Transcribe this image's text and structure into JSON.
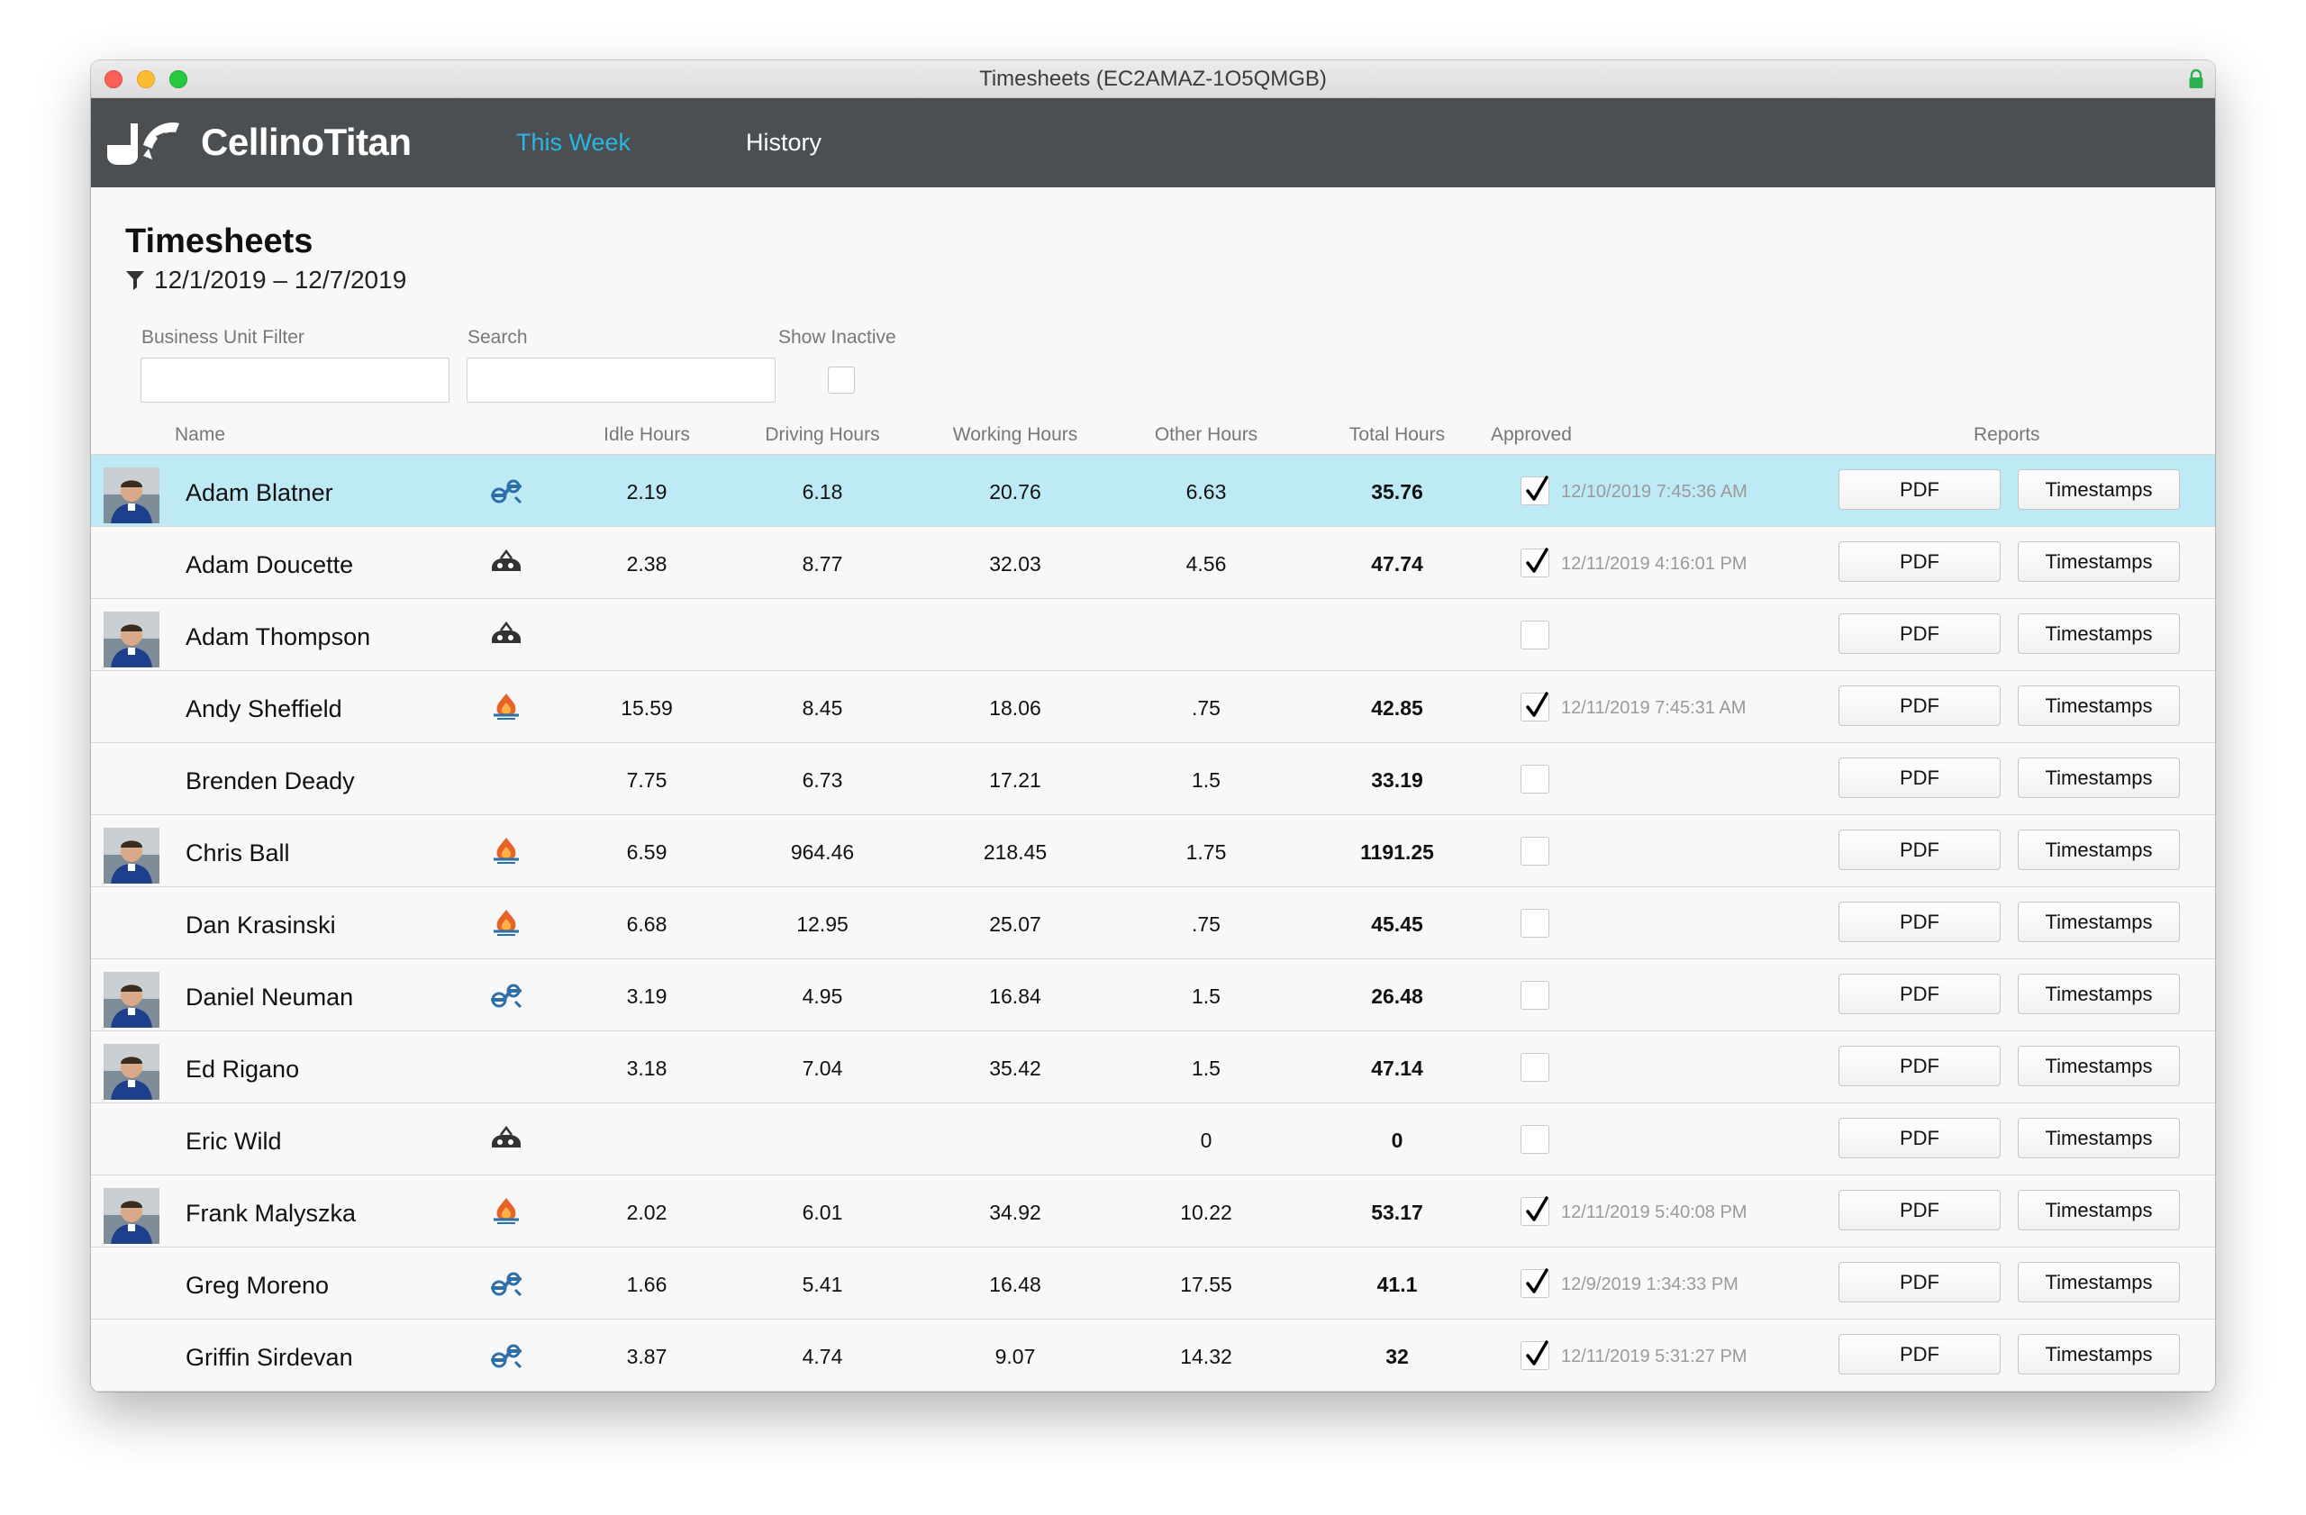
{
  "window": {
    "title": "Timesheets (EC2AMAZ-1O5QMGB)"
  },
  "nav": {
    "brand": "CellinoTitan",
    "tabs": [
      {
        "label": "This Week",
        "active": true
      },
      {
        "label": "History",
        "active": false
      }
    ]
  },
  "page": {
    "title": "Timesheets",
    "date_range": "12/1/2019 – 12/7/2019"
  },
  "filters": {
    "business_unit_label": "Business Unit Filter",
    "business_unit_value": "",
    "search_label": "Search",
    "search_value": "",
    "show_inactive_label": "Show Inactive",
    "show_inactive": false
  },
  "table": {
    "headers": {
      "name": "Name",
      "idle": "Idle Hours",
      "driving": "Driving Hours",
      "working": "Working Hours",
      "other": "Other Hours",
      "total": "Total Hours",
      "approved": "Approved",
      "reports": "Reports"
    },
    "pdf_label": "PDF",
    "timestamps_label": "Timestamps",
    "rows": [
      {
        "name": "Adam Blatner",
        "avatar": true,
        "trade_icon": "plumbing-icon",
        "idle": "2.19",
        "driving": "6.18",
        "working": "20.76",
        "other": "6.63",
        "total": "35.76",
        "approved": true,
        "approved_at": "12/10/2019 7:45:36 AM",
        "selected": true
      },
      {
        "name": "Adam Doucette",
        "avatar": false,
        "trade_icon": "drain-icon",
        "idle": "2.38",
        "driving": "8.77",
        "working": "32.03",
        "other": "4.56",
        "total": "47.74",
        "approved": true,
        "approved_at": "12/11/2019 4:16:01 PM"
      },
      {
        "name": "Adam Thompson",
        "avatar": true,
        "trade_icon": "drain-icon",
        "idle": "",
        "driving": "",
        "working": "",
        "other": "",
        "total": "",
        "approved": false,
        "approved_at": ""
      },
      {
        "name": "Andy Sheffield",
        "avatar": false,
        "trade_icon": "hvac-flame-icon",
        "idle": "15.59",
        "driving": "8.45",
        "working": "18.06",
        "other": ".75",
        "total": "42.85",
        "approved": true,
        "approved_at": "12/11/2019 7:45:31 AM"
      },
      {
        "name": "Brenden Deady",
        "avatar": false,
        "trade_icon": "",
        "idle": "7.75",
        "driving": "6.73",
        "working": "17.21",
        "other": "1.5",
        "total": "33.19",
        "approved": false,
        "approved_at": ""
      },
      {
        "name": "Chris Ball",
        "avatar": true,
        "trade_icon": "hvac-flame-icon",
        "idle": "6.59",
        "driving": "964.46",
        "working": "218.45",
        "other": "1.75",
        "total": "1191.25",
        "approved": false,
        "approved_at": ""
      },
      {
        "name": "Dan Krasinski",
        "avatar": false,
        "trade_icon": "hvac-flame-icon",
        "idle": "6.68",
        "driving": "12.95",
        "working": "25.07",
        "other": ".75",
        "total": "45.45",
        "approved": false,
        "approved_at": ""
      },
      {
        "name": "Daniel Neuman",
        "avatar": true,
        "trade_icon": "plumbing-icon",
        "idle": "3.19",
        "driving": "4.95",
        "working": "16.84",
        "other": "1.5",
        "total": "26.48",
        "approved": false,
        "approved_at": ""
      },
      {
        "name": "Ed Rigano",
        "avatar": true,
        "trade_icon": "",
        "idle": "3.18",
        "driving": "7.04",
        "working": "35.42",
        "other": "1.5",
        "total": "47.14",
        "approved": false,
        "approved_at": ""
      },
      {
        "name": "Eric Wild",
        "avatar": false,
        "trade_icon": "drain-icon",
        "idle": "",
        "driving": "",
        "working": "",
        "other": "0",
        "total": "0",
        "approved": false,
        "approved_at": ""
      },
      {
        "name": "Frank Malyszka",
        "avatar": true,
        "trade_icon": "hvac-flame-icon",
        "idle": "2.02",
        "driving": "6.01",
        "working": "34.92",
        "other": "10.22",
        "total": "53.17",
        "approved": true,
        "approved_at": "12/11/2019 5:40:08 PM"
      },
      {
        "name": "Greg Moreno",
        "avatar": false,
        "trade_icon": "plumbing-icon",
        "idle": "1.66",
        "driving": "5.41",
        "working": "16.48",
        "other": "17.55",
        "total": "41.1",
        "approved": true,
        "approved_at": "12/9/2019 1:34:33 PM"
      },
      {
        "name": "Griffin Sirdevan",
        "avatar": false,
        "trade_icon": "plumbing-icon",
        "idle": "3.87",
        "driving": "4.74",
        "working": "9.07",
        "other": "14.32",
        "total": "32",
        "approved": true,
        "approved_at": "12/11/2019 5:31:27 PM"
      }
    ]
  },
  "colors": {
    "navbar": "#4b4f52",
    "accent": "#2ab5e3",
    "selected_row": "#bdeaf5",
    "plumbing_icon": "#2e6fa8",
    "flame_icon": "#e8622c"
  }
}
